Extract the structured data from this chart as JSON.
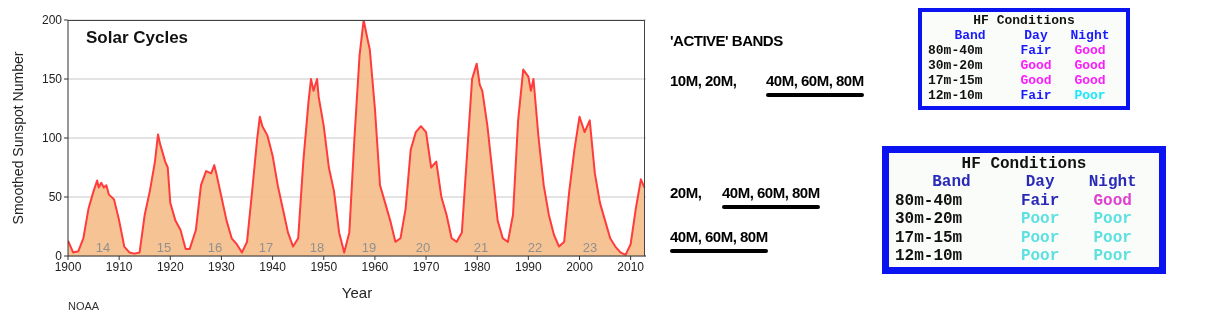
{
  "chart_data": [
    {
      "type": "area",
      "title": "Solar Cycles",
      "xlabel": "Year",
      "ylabel": "Smoothed Sunspot Number",
      "xlim": [
        1900,
        2013
      ],
      "xticks": [
        1900,
        1910,
        1920,
        1930,
        1940,
        1950,
        1960,
        1970,
        1980,
        1990,
        2000,
        2010
      ],
      "ylim": [
        0,
        200
      ],
      "yticks": [
        0,
        50,
        100,
        150,
        200
      ],
      "grid": "y",
      "legend": false,
      "series": [
        {
          "color": "#ff3b3b",
          "x": [
            1900,
            1901,
            1902,
            1903,
            1904,
            1905,
            1905.7,
            1906,
            1906.5,
            1907,
            1907.5,
            1908,
            1909,
            1910,
            1911,
            1912,
            1913,
            1914,
            1915,
            1916,
            1917,
            1917.6,
            1918,
            1919,
            1919.5,
            1920,
            1921,
            1922,
            1923,
            1923.8,
            1925,
            1926,
            1927,
            1928,
            1928.6,
            1929,
            1930,
            1931,
            1932,
            1933,
            1934,
            1935,
            1936,
            1937,
            1937.5,
            1938,
            1939,
            1940,
            1941,
            1942,
            1943,
            1944,
            1945,
            1946,
            1947,
            1947.5,
            1948,
            1948.7,
            1949,
            1950,
            1951,
            1952,
            1953,
            1954,
            1955,
            1956,
            1957,
            1957.8,
            1958.5,
            1959,
            1960,
            1961,
            1962,
            1963,
            1964,
            1965,
            1966,
            1967,
            1968,
            1969,
            1970,
            1971,
            1972,
            1973,
            1974,
            1975,
            1976,
            1977,
            1978,
            1979,
            1979.9,
            1980.5,
            1981,
            1982,
            1983,
            1984,
            1985,
            1986,
            1987,
            1988,
            1989,
            1990,
            1990.5,
            1991,
            1992,
            1993,
            1994,
            1995,
            1996,
            1997,
            1998,
            1999,
            2000,
            2001,
            2002,
            2003,
            2004,
            2005,
            2006,
            2007,
            2008,
            2009,
            2010,
            2011,
            2012,
            2012.7
          ],
          "values": [
            13,
            3,
            4,
            15,
            40,
            55,
            64,
            58,
            62,
            58,
            60,
            52,
            48,
            30,
            8,
            3,
            2,
            3,
            35,
            55,
            80,
            103,
            95,
            80,
            75,
            45,
            30,
            22,
            6,
            6,
            22,
            60,
            72,
            70,
            77,
            70,
            50,
            30,
            15,
            10,
            3,
            12,
            55,
            100,
            118,
            110,
            102,
            85,
            60,
            40,
            20,
            8,
            15,
            80,
            130,
            150,
            140,
            150,
            135,
            110,
            75,
            55,
            20,
            3,
            20,
            100,
            170,
            200,
            185,
            175,
            125,
            60,
            45,
            30,
            12,
            15,
            40,
            90,
            105,
            110,
            105,
            75,
            80,
            50,
            35,
            15,
            12,
            20,
            85,
            150,
            163,
            145,
            140,
            110,
            70,
            30,
            15,
            12,
            35,
            115,
            158,
            152,
            140,
            150,
            100,
            60,
            35,
            18,
            8,
            12,
            55,
            90,
            118,
            105,
            115,
            70,
            45,
            30,
            15,
            8,
            3,
            1,
            10,
            40,
            65,
            58
          ]
        }
      ],
      "annotations": [
        "14",
        "15",
        "16",
        "17",
        "18",
        "19",
        "20",
        "21",
        "22",
        "23",
        "NOAA"
      ]
    },
    {
      "type": "other",
      "title": "'ACTIVE' BANDS",
      "annotations": [
        "10M, 20M,",
        "40M, 60M, 80M",
        "20M,",
        "40M, 60M, 80M",
        "40M, 60M, 80M"
      ]
    },
    {
      "type": "other",
      "title": "HF Conditions",
      "categories": [
        "Band",
        "Day",
        "Night"
      ],
      "y_categories": [
        "80m-40m",
        "30m-20m",
        "17m-15m",
        "12m-10m"
      ],
      "cell_labels": [
        [
          "Fair",
          "Good"
        ],
        [
          "Good",
          "Good"
        ],
        [
          "Good",
          "Good"
        ],
        [
          "Fair",
          "Poor"
        ]
      ],
      "color": "#1a1aff",
      "colors": [
        [
          "#1a1aff",
          "#ff1aff"
        ],
        [
          "#ff1aff",
          "#ff1aff"
        ],
        [
          "#ff1aff",
          "#ff1aff"
        ],
        [
          "#1a1aff",
          "#1ae8ff"
        ]
      ]
    },
    {
      "type": "other",
      "title": "HF Conditions",
      "categories": [
        "Band",
        "Day",
        "Night"
      ],
      "y_categories": [
        "80m-40m",
        "30m-20m",
        "17m-15m",
        "12m-10m"
      ],
      "cell_labels": [
        [
          "Fair",
          "Good"
        ],
        [
          "Poor",
          "Poor"
        ],
        [
          "Poor",
          "Poor"
        ],
        [
          "Poor",
          "Poor"
        ]
      ],
      "color": "#2a2ab8",
      "colors": [
        [
          "#2a2ab8",
          "#e040d0"
        ],
        [
          "#5ce0e0",
          "#5ce0e0"
        ],
        [
          "#5ce0e0",
          "#5ce0e0"
        ],
        [
          "#5ce0e0",
          "#5ce0e0"
        ]
      ]
    }
  ]
}
